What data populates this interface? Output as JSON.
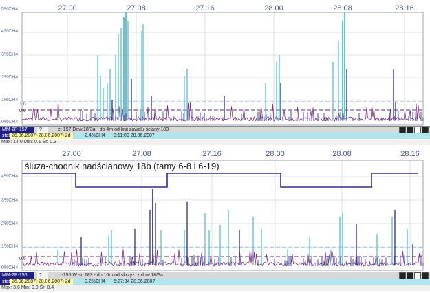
{
  "panel1": {
    "x_ticks": [
      "27.00",
      "27.08",
      "27.16",
      "28.00",
      "28.08",
      "28.16"
    ],
    "y_labels": [
      "5%CH4",
      "4%CH4",
      "3%CH4",
      "2%CH4",
      "1%CH4",
      "0%CH4"
    ],
    "threshold_label_hi": "1.6",
    "threshold_label_lo": "0.6",
    "status": {
      "id": "MM-2P-157",
      "code": "?",
      "desc": "ct-157 Dow.18/3a - do 4m od linii zawału ściany 183",
      "stat_tag": "stat",
      "period": "26.06.2007÷28.06.2007÷2d",
      "value": "2.4%CH4",
      "time": "8:11:00 28.06.2007",
      "stats_line": "Max: 14.0  Min: 0.1  Śr: 0.3"
    }
  },
  "panel2": {
    "title": "śluza-chodnik nadścianowy 18b (tamy 6-8 i 6-19)",
    "x_ticks": [
      "27.00",
      "27.08",
      "27.16",
      "28.00",
      "28.08",
      "28.16"
    ],
    "y_labels": [
      "4%CH4",
      "3%CH4",
      "2%CH4",
      "1%CH4",
      "0%CH4"
    ],
    "threshold_label": "0.6",
    "status": {
      "id": "MM-2P-156",
      "code": "?",
      "desc": "ct-156 W sc.183 - do 10m od skrzyż. z dow.18/3a",
      "stat_tag": "stat",
      "period": "26.06.2007÷28.06.2007÷2d",
      "value": "0.2%CH4",
      "time": "6:27:34 28.06.2007",
      "stats_line": "Max: 3.6  Min: 0.0  Śr: 0.4"
    }
  },
  "colors": {
    "light_series": "#5cc8d8",
    "dark_series": "#3a3a9a",
    "purple_series": "#8a2a8a",
    "grid": "#c8ccd8",
    "status_blue": "#202080"
  },
  "icons": [
    "scroll-left-icon",
    "scroll-right-icon",
    "pin-icon",
    "close-icon"
  ]
}
